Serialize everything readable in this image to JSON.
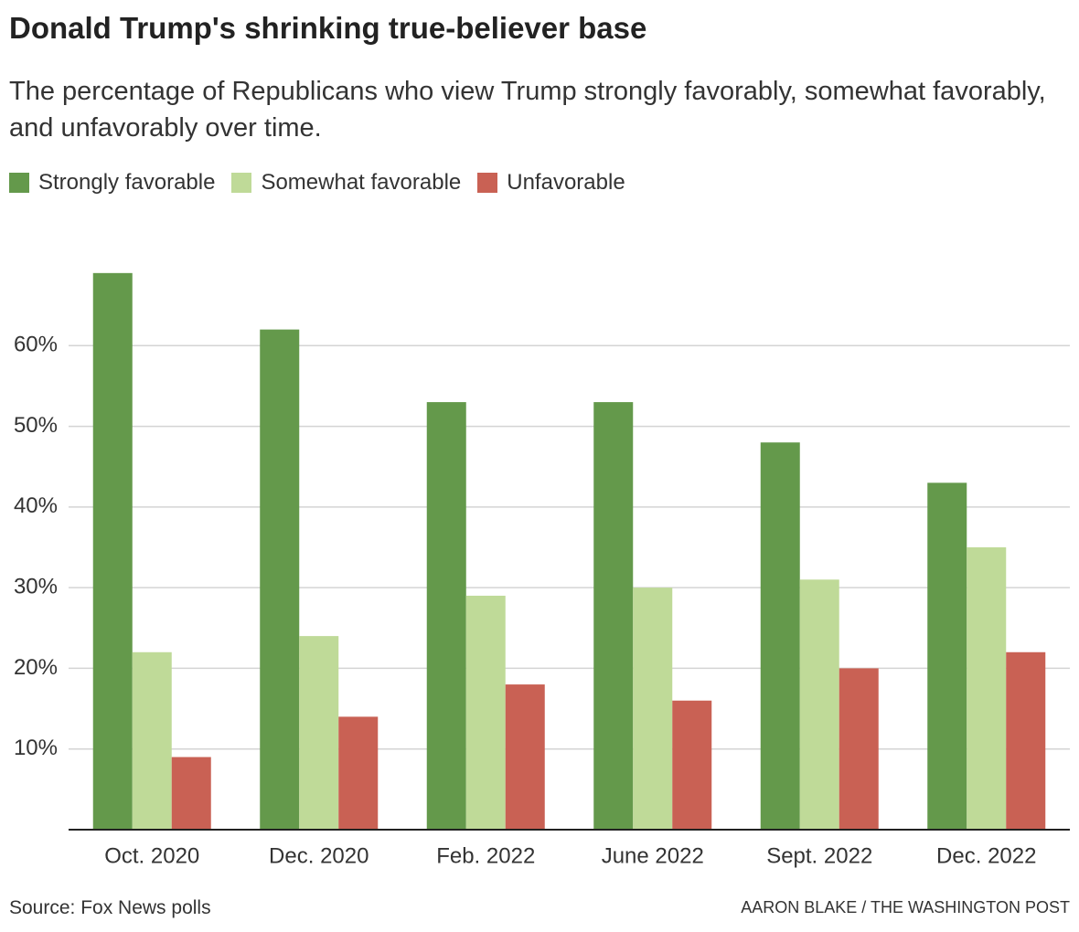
{
  "chart_data": {
    "type": "bar",
    "title": "Donald Trump's shrinking true-believer base",
    "subtitle": "The percentage of Republicans who view Trump strongly favorably, somewhat favorably, and unfavorably over time.",
    "categories": [
      "Oct. 2020",
      "Dec. 2020",
      "Feb. 2022",
      "June 2022",
      "Sept. 2022",
      "Dec. 2022"
    ],
    "series": [
      {
        "name": "Strongly favorable",
        "color": "#64994b",
        "values": [
          69,
          62,
          53,
          53,
          48,
          43
        ]
      },
      {
        "name": "Somewhat favorable",
        "color": "#bfda98",
        "values": [
          22,
          24,
          29,
          30,
          31,
          35
        ]
      },
      {
        "name": "Unfavorable",
        "color": "#c96154",
        "values": [
          9,
          14,
          18,
          16,
          20,
          22
        ]
      }
    ],
    "ylim": [
      0,
      70
    ],
    "yticks": [
      {
        "value": 10,
        "label": "10%"
      },
      {
        "value": 20,
        "label": "20%"
      },
      {
        "value": 30,
        "label": "30%"
      },
      {
        "value": 40,
        "label": "40%"
      },
      {
        "value": 50,
        "label": "50%"
      },
      {
        "value": 60,
        "label": "60%"
      }
    ],
    "grid": true,
    "source": "Source: Fox News polls",
    "credit": "AARON BLAKE / THE WASHINGTON POST"
  }
}
